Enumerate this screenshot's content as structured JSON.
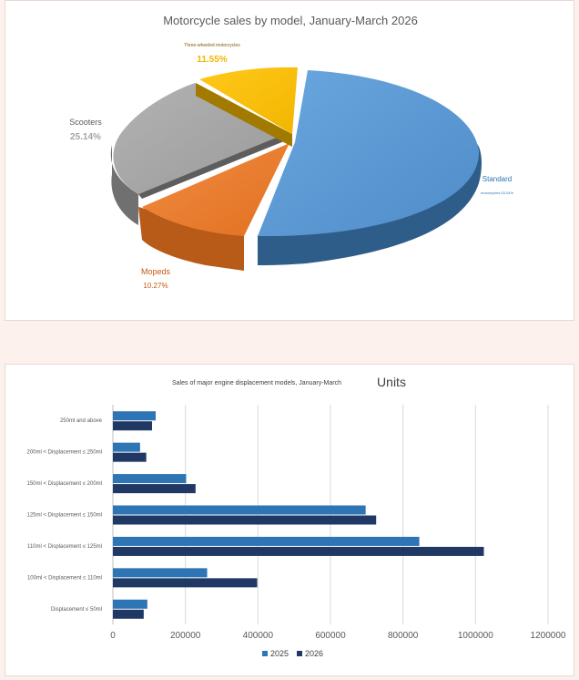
{
  "chart_data": [
    {
      "type": "pie",
      "title": "Motorcycle sales by model, January-March 2026",
      "slices": [
        {
          "name": "Standard",
          "sublabel": "motorcycles 53.04%",
          "value": 53.04,
          "label": "",
          "color": "#5b9bd5"
        },
        {
          "name": "Mopeds",
          "value": 10.27,
          "label": "10.27%",
          "color": "#ed7d31"
        },
        {
          "name": "Scooters",
          "value": 25.14,
          "label": "25.14%",
          "color": "#a5a5a5"
        },
        {
          "name": "Three-wheeled motorcycles",
          "value": 11.55,
          "label": "11.55%",
          "color": "#ffc000"
        }
      ]
    },
    {
      "type": "bar",
      "orientation": "horizontal",
      "title": "Sales of major engine displacement models, January-March",
      "unit_label": "Units",
      "categories": [
        "250ml and above",
        "200ml < Displacement ≤ 250ml",
        "150ml < Displacement ≤ 200ml",
        "125ml < Displacement ≤ 150ml",
        "110ml < Displacement ≤ 125ml",
        "100ml < Displacement ≤ 110ml",
        "Displacement ≤ 50ml"
      ],
      "series": [
        {
          "name": "2025",
          "color": "#2e75b6",
          "values": [
            118000,
            75000,
            202000,
            697000,
            845000,
            260000,
            95000
          ]
        },
        {
          "name": "2026",
          "color": "#203864",
          "values": [
            108000,
            92000,
            228000,
            726000,
            1023000,
            398000,
            85000
          ]
        }
      ],
      "xlim": [
        0,
        1200000
      ],
      "xticks": [
        "0",
        "200000",
        "400000",
        "600000",
        "800000",
        "1000000",
        "1200000"
      ],
      "grid": true,
      "legend_position": "bottom"
    }
  ]
}
